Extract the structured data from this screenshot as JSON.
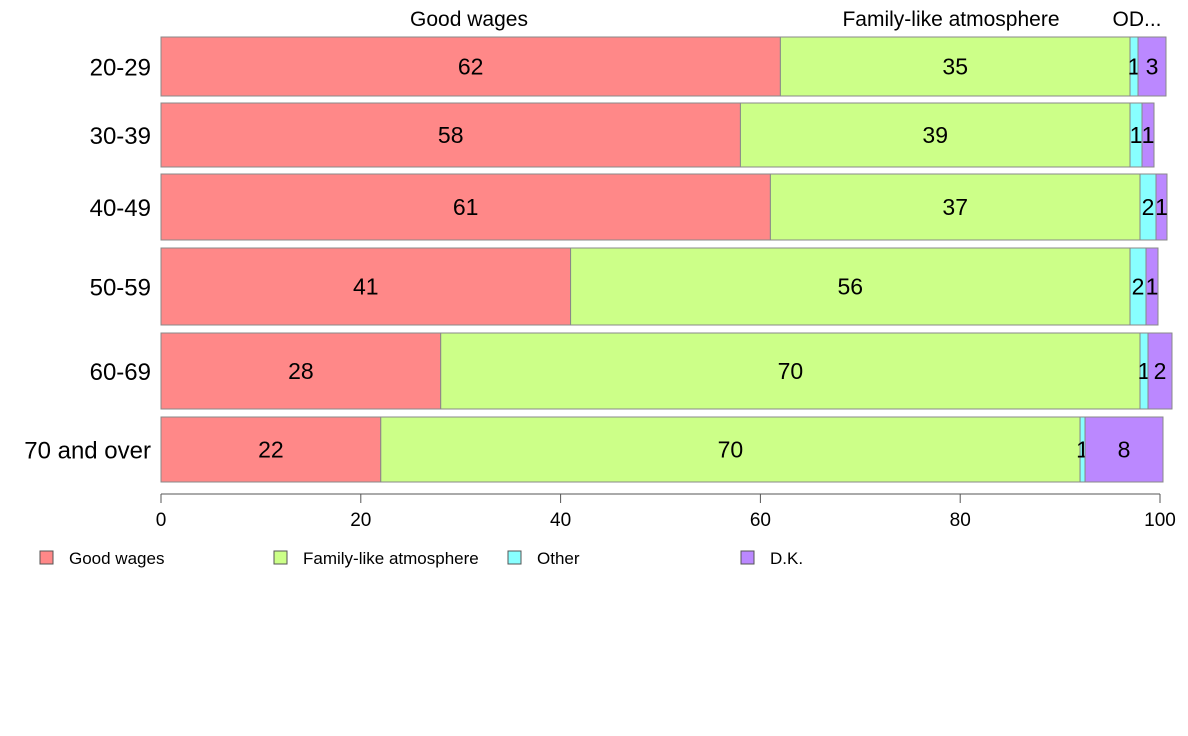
{
  "chart_data": {
    "type": "bar",
    "orientation": "horizontal",
    "stacked": true,
    "categories": [
      "20-29",
      "30-39",
      "40-49",
      "50-59",
      "60-69",
      "70 and over"
    ],
    "series": [
      {
        "name": "Good wages",
        "color": "#ff8888",
        "values": [
          62,
          58,
          61,
          41,
          28,
          22
        ],
        "labels": [
          "62",
          "58",
          "61",
          "41",
          "28",
          "22"
        ]
      },
      {
        "name": "Family-like atmosphere",
        "color": "#ccff88",
        "values": [
          35,
          39,
          37,
          56,
          70,
          70
        ],
        "labels": [
          "35",
          "39",
          "37",
          "56",
          "70",
          "70"
        ]
      },
      {
        "name": "Other",
        "color": "#88ffff",
        "values": [
          0.8,
          1.2,
          1.6,
          1.6,
          0.8,
          0.5
        ],
        "labels": [
          "1",
          "1",
          "2",
          "2",
          "1",
          "1"
        ]
      },
      {
        "name": "D.K.",
        "color": "#bb88ff",
        "values": [
          2.8,
          1.2,
          1.1,
          1.2,
          2.4,
          7.8
        ],
        "labels": [
          "3",
          "1",
          "1",
          "1",
          "2",
          "8"
        ]
      }
    ],
    "top_labels": [
      "Good wages",
      "Family-like atmosphere",
      "OD..."
    ],
    "xlim": [
      0,
      100
    ],
    "xticks": [
      "0",
      "20",
      "40",
      "60",
      "80",
      "100"
    ],
    "grid": false,
    "legend_position": "bottom"
  }
}
